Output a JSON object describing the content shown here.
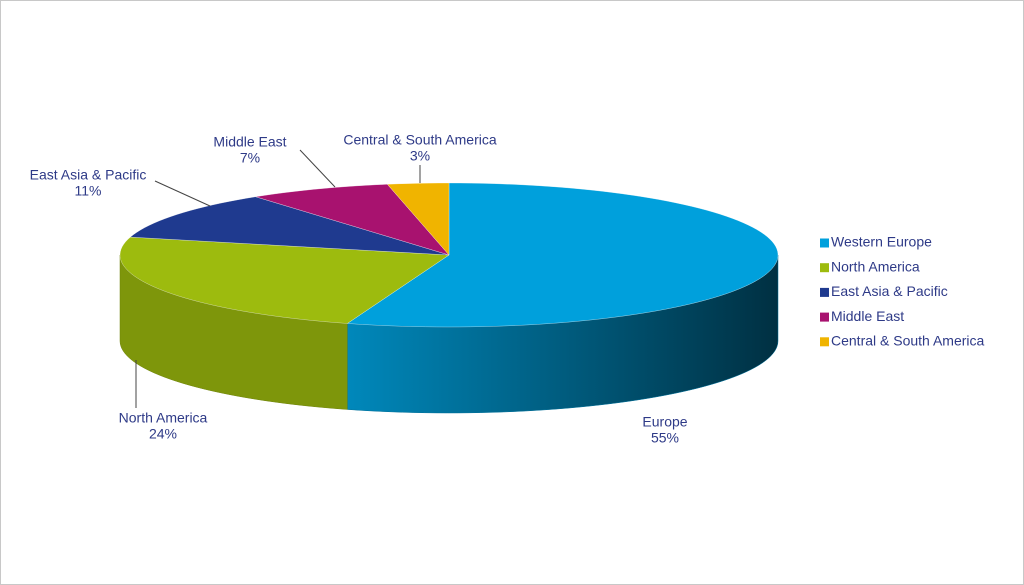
{
  "chart_data": {
    "type": "pie",
    "categories": [
      "Western Europe",
      "North America",
      "East Asia & Pacific",
      "Middle East",
      "Central & South America"
    ],
    "slice_labels": [
      "Europe",
      "North America",
      "East Asia & Pacific",
      "Middle East",
      "Central & South America"
    ],
    "values": [
      55,
      24,
      11,
      7,
      3
    ],
    "value_labels": [
      "55%",
      "24%",
      "11%",
      "7%",
      "3%"
    ],
    "colors": [
      "#00a0dc",
      "#9dbb0e",
      "#1f3a8f",
      "#a8126f",
      "#f0b400"
    ],
    "legend": "right"
  }
}
